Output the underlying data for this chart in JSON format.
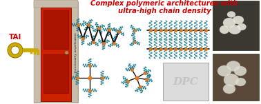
{
  "title_line1": "Complex polymeric architectures with",
  "title_line2": "ultra-high chain density",
  "title_color": "#cc0000",
  "tai_text": "TAI",
  "tai_color": "#cc0000",
  "key_color": "#ccaa00",
  "key_edge_color": "#997700",
  "func_amp_text": "Functionality amplification",
  "background_color": "#ffffff",
  "teal_color": "#1a7a8a",
  "orange_color": "#e07820",
  "black_color": "#111111",
  "door_stone_color": "#c8bcaa",
  "door_red_color": "#cc2200",
  "door_panel_color": "#aa1500",
  "fig_width": 3.78,
  "fig_height": 1.51,
  "dpi": 100
}
